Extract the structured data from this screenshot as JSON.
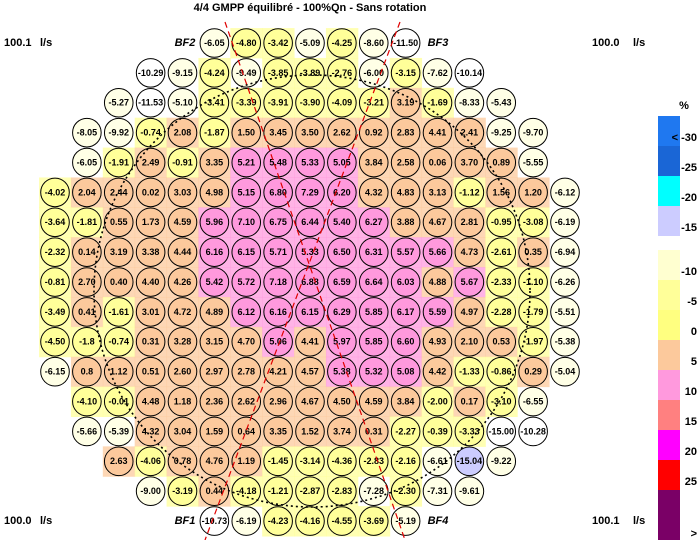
{
  "title": "4/4 GMPP équilibré - 100%Qn - Sans rotation",
  "corners": {
    "top_left": {
      "value": "100.1",
      "unit": "l/s"
    },
    "top_right": {
      "value": "100.0",
      "unit": "l/s"
    },
    "bottom_left": {
      "value": "100.0",
      "unit": "l/s"
    },
    "bottom_right": {
      "value": "100.1",
      "unit": "l/s"
    }
  },
  "markers": {
    "top_left": "BF2",
    "top_right": "BF3",
    "bottom_left": "BF1",
    "bottom_right": "BF4"
  },
  "legend": {
    "title": "%",
    "entries": [
      {
        "label": "< -30",
        "color": "#1f78f0"
      },
      {
        "label": "-25",
        "color": "#1a66d6"
      },
      {
        "label": "-20",
        "color": "#00ffff"
      },
      {
        "label": "-15",
        "color": "#ccccff"
      },
      {
        "label": "-10",
        "color": "#ffffd0"
      },
      {
        "label": "-5",
        "color": "#ffff99"
      },
      {
        "label": "0",
        "color": "#ffff80"
      },
      {
        "label": "5",
        "color": "#fcc99c"
      },
      {
        "label": "10",
        "color": "#ff99dd"
      },
      {
        "label": "15",
        "color": "#ff8080"
      },
      {
        "label": "20",
        "color": "#ff00ff"
      },
      {
        "label": "25",
        "color": "#ff0000"
      },
      {
        "label": ">",
        "color": "#7a0066"
      }
    ]
  },
  "bands": [
    {
      "min": -1000,
      "color": "#1f78f0"
    },
    {
      "min": -30,
      "color": "#1a66d6"
    },
    {
      "min": -25,
      "color": "#00ffff"
    },
    {
      "min": -20,
      "color": "#ccccff"
    },
    {
      "min": -15,
      "color": "#ffffff"
    },
    {
      "min": -10,
      "color": "#ffffe6"
    },
    {
      "min": -5,
      "color": "#ffff99"
    },
    {
      "min": 0,
      "color": "#fcc99c"
    },
    {
      "min": 5,
      "color": "#ff99dd"
    },
    {
      "min": 10,
      "color": "#ff8080"
    },
    {
      "min": 15,
      "color": "#ff00ff"
    },
    {
      "min": 20,
      "color": "#ff0000"
    },
    {
      "min": 25,
      "color": "#7a0066"
    }
  ],
  "grid": [
    [
      null,
      null,
      null,
      null,
      null,
      "-6.05",
      "-4.80",
      "-3.42",
      "-5.09",
      "-4.25",
      "-8.60",
      "-11.50",
      null,
      null,
      null,
      null,
      null
    ],
    [
      null,
      null,
      null,
      "-10.29",
      "-9.15",
      "-4.24",
      "-9.49",
      "-3.85",
      "-3.89",
      "-2.76",
      "-6.00",
      "-3.15",
      "-7.62",
      "-10.14",
      null,
      null,
      null
    ],
    [
      null,
      null,
      "-5.27",
      "-11.53",
      "-5.10",
      "-3.41",
      "-3.39",
      "-3.91",
      "-3.90",
      "-4.09",
      "-3.21",
      "3.19",
      "-1.69",
      "-8.33",
      "-5.43",
      null,
      null
    ],
    [
      null,
      "-8.05",
      "-9.92",
      "-0.74",
      "2.08",
      "-1.87",
      "1.50",
      "3.45",
      "3.50",
      "2.62",
      "0.92",
      "2.83",
      "4.41",
      "2.41",
      "-9.25",
      "-9.70",
      null
    ],
    [
      null,
      "-6.05",
      "-1.91",
      "2.49",
      "-0.91",
      "3.35",
      "5.21",
      "5.48",
      "5.33",
      "5.05",
      "3.84",
      "2.58",
      "0.06",
      "3.70",
      "0.89",
      "-5.55",
      null
    ],
    [
      "-4.02",
      "2.04",
      "2.44",
      "0.02",
      "3.03",
      "4.98",
      "5.15",
      "6.80",
      "7.29",
      "6.20",
      "4.32",
      "4.83",
      "3.13",
      "-1.12",
      "1.56",
      "1.20",
      "-6.12"
    ],
    [
      "-3.64",
      "-1.81",
      "0.55",
      "1.73",
      "4.59",
      "5.96",
      "7.10",
      "6.75",
      "6.44",
      "5.40",
      "6.27",
      "3.88",
      "4.67",
      "2.81",
      "-0.95",
      "-3.08",
      "-6.19"
    ],
    [
      "-2.32",
      "0.14",
      "3.19",
      "3.38",
      "4.44",
      "6.16",
      "6.15",
      "5.71",
      "5.33",
      "6.50",
      "6.31",
      "5.57",
      "5.66",
      "4.73",
      "-2.61",
      "0.35",
      "-6.94"
    ],
    [
      "-0.81",
      "2.70",
      "0.40",
      "4.40",
      "4.26",
      "5.42",
      "5.72",
      "7.18",
      "6.88",
      "6.59",
      "6.64",
      "6.03",
      "4.88",
      "5.67",
      "-2.33",
      "-1.10",
      "-6.26"
    ],
    [
      "-3.49",
      "0.41",
      "-1.61",
      "3.01",
      "4.72",
      "4.89",
      "6.12",
      "6.16",
      "6.15",
      "6.29",
      "5.85",
      "6.17",
      "5.59",
      "4.97",
      "-2.28",
      "-1.79",
      "-5.51"
    ],
    [
      "-4.50",
      "-1.8",
      "-0.74",
      "0.31",
      "3.28",
      "3.15",
      "4.70",
      "5.06",
      "4.41",
      "5.97",
      "5.85",
      "6.60",
      "4.93",
      "2.10",
      "0.53",
      "-1.97",
      "-5.38"
    ],
    [
      "-6.15",
      "0.8",
      "1.12",
      "0.51",
      "2.60",
      "2.97",
      "2.78",
      "4.21",
      "4.57",
      "5.38",
      "5.32",
      "5.08",
      "4.42",
      "-1.33",
      "-0.86",
      "0.29",
      "-5.04"
    ],
    [
      null,
      "-4.10",
      "-0.01",
      "4.48",
      "1.18",
      "2.36",
      "2.62",
      "2.96",
      "4.67",
      "4.50",
      "4.59",
      "3.84",
      "-2.00",
      "0.17",
      "-3.10",
      "-6.55",
      null
    ],
    [
      null,
      "-5.66",
      "-5.39",
      "4.32",
      "3.04",
      "1.59",
      "0.64",
      "3.35",
      "1.52",
      "3.74",
      "0.31",
      "-2.27",
      "-0.39",
      "-3.33",
      "-15.00",
      "-10.28",
      null
    ],
    [
      null,
      null,
      "2.63",
      "-4.06",
      "0.78",
      "4.76",
      "1.19",
      "-1.45",
      "-3.14",
      "-4.36",
      "-2.83",
      "-2.16",
      "-6.61",
      "-15.04",
      "-9.22",
      null,
      null
    ],
    [
      null,
      null,
      null,
      "-9.00",
      "-3.19",
      "0.44",
      "-4.18",
      "-1.21",
      "-2.87",
      "-2.83",
      "-7.28",
      "-2.30",
      "-7.31",
      "-9.61",
      null,
      null,
      null
    ],
    [
      null,
      null,
      null,
      null,
      null,
      "-10.73",
      "-6.19",
      "-4.23",
      "-4.16",
      "-4.55",
      "-3.69",
      "-5.19",
      null,
      null,
      null,
      null,
      null
    ]
  ]
}
